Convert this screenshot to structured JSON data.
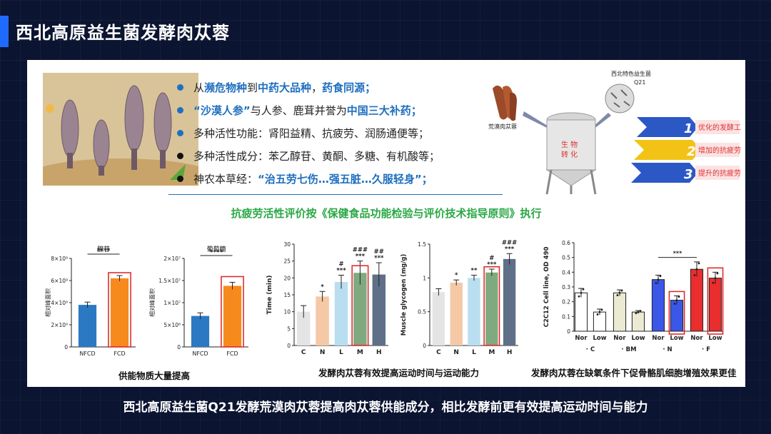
{
  "title": "西北高原益生菌发酵肉苁蓉",
  "bullets": [
    {
      "color": "blue",
      "parts": [
        {
          "t": "从",
          "s": ""
        },
        {
          "t": "濒危物种",
          "s": "blue"
        },
        {
          "t": "到",
          "s": ""
        },
        {
          "t": "中药大品种",
          "s": "blue"
        },
        {
          "t": "，",
          "s": ""
        },
        {
          "t": "药食同源；",
          "s": "blue"
        }
      ]
    },
    {
      "color": "blue",
      "parts": [
        {
          "t": "“沙漠人参”",
          "s": "blue"
        },
        {
          "t": "  与人参、鹿茸并誉为",
          "s": ""
        },
        {
          "t": "中国三大补药；",
          "s": "blue"
        }
      ]
    },
    {
      "color": "blue",
      "parts": [
        {
          "t": "多种活性功能：肾阳益精、抗疲劳、润肠通便等；",
          "s": ""
        }
      ]
    },
    {
      "color": "black",
      "parts": [
        {
          "t": "多种活性成分：苯乙醇苷、黄酮、多糖、有机酸等；",
          "s": ""
        }
      ]
    },
    {
      "color": "black",
      "parts": [
        {
          "t": "神农本草经：",
          "s": ""
        },
        {
          "t": "“治五劳七伤…强五脏…久服轻身”；",
          "s": "blue"
        }
      ]
    }
  ],
  "process": {
    "raw_label": "荒漠肉苁蓉",
    "strain_label_1": "西北特色益生菌",
    "strain_label_2": "Q21",
    "tank_label_1": "生 物",
    "tank_label_2": "转 化",
    "steps": [
      {
        "num": "1",
        "label": "优化的发酵工艺"
      },
      {
        "num": "2",
        "label": "增加的抗疲劳成分"
      },
      {
        "num": "3",
        "label": "提升的抗疲劳作用"
      }
    ]
  },
  "green_title": "抗疲劳活性评价按《保健食品功能检验与评价技术指导原则》执行",
  "captions": {
    "left": "供能物质大量提高",
    "middle": "发酵肉苁蓉有效提高运动时间与运动能力",
    "right": "发酵肉苁蓉在缺氧条件下促骨骼肌细胞增殖效果更佳"
  },
  "footer": "西北高原益生菌Q21发酵荒漠肉苁蓉提高肉苁蓉供能成分，相比发酵前更有效提高运动时间与能力",
  "chart_data": [
    {
      "type": "bar",
      "title": "腺苷",
      "ylabel": "相对峰面积",
      "categories": [
        "NFCD",
        "FCD"
      ],
      "values": [
        3800000000.0,
        6200000000.0
      ],
      "errors": [
        250000000.0,
        250000000.0
      ],
      "ylim": [
        0,
        8000000000.0
      ],
      "yticks": [
        0,
        2000000000.0,
        4000000000.0,
        6000000000.0,
        8000000000.0
      ],
      "ytick_labels": [
        "0",
        "2×10⁹",
        "4×10⁹",
        "6×10⁹",
        "8×10⁹"
      ],
      "colors": [
        "#2b79c2",
        "#f78a1d"
      ],
      "significance": "****",
      "highlight": "FCD"
    },
    {
      "type": "bar",
      "title": "葡萄糖",
      "ylabel": "相对峰面积",
      "categories": [
        "NFCD",
        "FCD"
      ],
      "values": [
        7000000.0,
        13800000.0
      ],
      "errors": [
        700000.0,
        800000.0
      ],
      "ylim": [
        0,
        20000000.0
      ],
      "yticks": [
        0,
        5000000.0,
        10000000.0,
        15000000.0,
        20000000.0
      ],
      "ytick_labels": [
        "0",
        "5×10⁶",
        "1×10⁷",
        "1.5×10⁷",
        "2×10⁷"
      ],
      "colors": [
        "#2b79c2",
        "#f78a1d"
      ],
      "significance": "****",
      "highlight": "FCD"
    },
    {
      "type": "bar",
      "ylabel": "Time (min)",
      "categories": [
        "C",
        "N",
        "L",
        "M",
        "H"
      ],
      "values": [
        10,
        14.5,
        18.8,
        21.5,
        21
      ],
      "errors": [
        1.8,
        1.5,
        2.0,
        3.5,
        3.5
      ],
      "ylim": [
        0,
        30
      ],
      "yticks": [
        0,
        5,
        10,
        15,
        20,
        25,
        30
      ],
      "colors": [
        "#e4e4e4",
        "#f5c8a6",
        "#b9def0",
        "#7faa7f",
        "#5f6f88"
      ],
      "marks": [
        "",
        "*",
        "#\n***",
        "###\n***",
        "##\n***"
      ],
      "highlight": "M"
    },
    {
      "type": "bar",
      "ylabel": "Muscle glycogen (mg/g)",
      "categories": [
        "C",
        "N",
        "L",
        "M",
        "H"
      ],
      "values": [
        0.79,
        0.93,
        1.0,
        1.08,
        1.28
      ],
      "errors": [
        0.05,
        0.04,
        0.04,
        0.05,
        0.08
      ],
      "ylim": [
        0,
        1.5
      ],
      "yticks": [
        0,
        0.5,
        1.0,
        1.5
      ],
      "colors": [
        "#e4e4e4",
        "#f5c8a6",
        "#b9def0",
        "#7faa7f",
        "#5f6f88"
      ],
      "marks": [
        "",
        "*",
        "**",
        "#\n***",
        "###\n***"
      ],
      "highlight": "M"
    },
    {
      "type": "bar",
      "ylabel": "C2C12 Cell line, OD 490",
      "categories": [
        "Nor",
        "Low",
        "Nor",
        "Low",
        "Nor",
        "Low",
        "Nor",
        "Low"
      ],
      "groups": [
        "C",
        "BM",
        "N",
        "F"
      ],
      "values": [
        0.26,
        0.13,
        0.26,
        0.13,
        0.35,
        0.21,
        0.42,
        0.36
      ],
      "errors": [
        0.03,
        0.02,
        0.02,
        0.01,
        0.03,
        0.03,
        0.05,
        0.04
      ],
      "ylim": [
        0,
        0.6
      ],
      "yticks": [
        0,
        0.1,
        0.2,
        0.3,
        0.4,
        0.5,
        0.6
      ],
      "colors": [
        "#ffffff",
        "#ffffff",
        "#ecead2",
        "#ecead2",
        "#3a57e8",
        "#3a57e8",
        "#ea2d2d",
        "#ea2d2d"
      ],
      "significance": "***",
      "highlight": [
        "N-Low",
        "F-Low"
      ]
    }
  ]
}
